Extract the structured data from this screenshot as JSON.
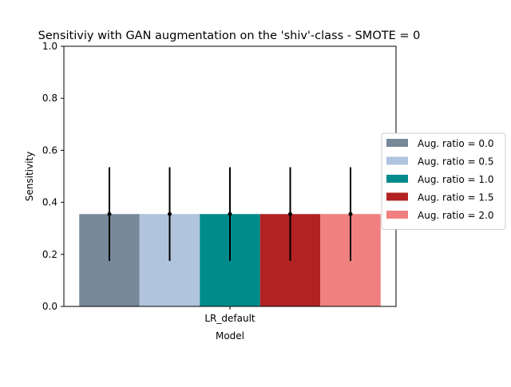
{
  "chart_data": {
    "type": "bar",
    "title": "Sensitiviy with GAN augmentation on the 'shiv'-class - SMOTE = 0",
    "xlabel": "Model",
    "ylabel": "Sensitivity",
    "categories": [
      "LR_default"
    ],
    "ylim": [
      0,
      1.0
    ],
    "yticks": [
      "0.0",
      "0.2",
      "0.4",
      "0.6",
      "0.8",
      "1.0"
    ],
    "grid": false,
    "legend_position": "right",
    "series": [
      {
        "name": "Aug. ratio = 0.0",
        "color": "#778899",
        "values": [
          0.355
        ],
        "error": [
          0.18
        ]
      },
      {
        "name": "Aug. ratio = 0.5",
        "color": "#b0c4de",
        "values": [
          0.355
        ],
        "error": [
          0.18
        ]
      },
      {
        "name": "Aug. ratio = 1.0",
        "color": "#008b8b",
        "values": [
          0.355
        ],
        "error": [
          0.18
        ]
      },
      {
        "name": "Aug. ratio = 1.5",
        "color": "#b22222",
        "values": [
          0.355
        ],
        "error": [
          0.18
        ]
      },
      {
        "name": "Aug. ratio = 2.0",
        "color": "#f08080",
        "values": [
          0.355
        ],
        "error": [
          0.18
        ]
      }
    ]
  }
}
